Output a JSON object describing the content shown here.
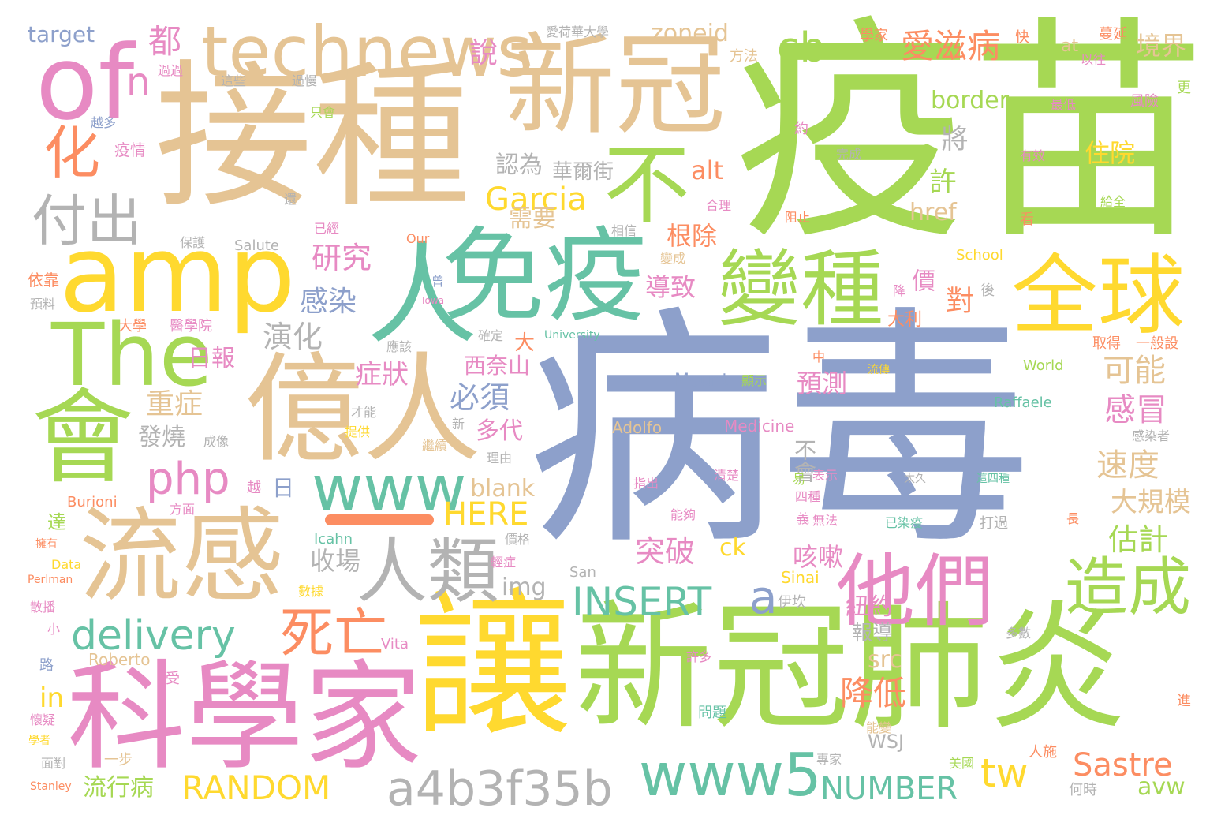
{
  "palette": {
    "green": "#a6d854",
    "tan": "#e5c494",
    "pink": "#e78ac3",
    "blue": "#8da0cb",
    "teal": "#66c2a5",
    "orange": "#fc8d62",
    "yellow": "#ffd92f",
    "gray": "#b3b3b3"
  },
  "words": [
    {
      "text": "病毒"
    },
    {
      "text": "疫苗"
    },
    {
      "text": "接種"
    },
    {
      "text": "新冠"
    },
    {
      "text": "億人"
    },
    {
      "text": "讓"
    },
    {
      "text": "新冠肺炎"
    },
    {
      "text": "科學家"
    },
    {
      "text": "免疫"
    },
    {
      "text": "人"
    },
    {
      "text": "流感"
    },
    {
      "text": "不"
    },
    {
      "text": "amp"
    },
    {
      "text": "會"
    },
    {
      "text": "The"
    },
    {
      "text": "of"
    },
    {
      "text": "technews"
    },
    {
      "text": "變種"
    },
    {
      "text": "全球"
    },
    {
      "text": "他們"
    },
    {
      "text": "人類"
    },
    {
      "text": "造成"
    },
    {
      "text": "www"
    },
    {
      "text": "www5"
    },
    {
      "text": "a4b3f35b"
    },
    {
      "text": "死亡"
    },
    {
      "text": "delivery"
    },
    {
      "text": "php"
    },
    {
      "text": "化"
    },
    {
      "text": "付出"
    },
    {
      "text": "cb"
    },
    {
      "text": "INSERT"
    },
    {
      "text": "tw"
    },
    {
      "text": "a"
    },
    {
      "text": "愛滋病"
    },
    {
      "text": "Garcia"
    },
    {
      "text": "RANDOM"
    },
    {
      "text": "NUMBER"
    },
    {
      "text": "Sastre"
    },
    {
      "text": "HERE"
    },
    {
      "text": "n"
    },
    {
      "text": "都"
    },
    {
      "text": "說"
    },
    {
      "text": "zoneid"
    },
    {
      "text": "境界"
    },
    {
      "text": "border"
    },
    {
      "text": "將"
    },
    {
      "text": "住院"
    },
    {
      "text": "認為"
    },
    {
      "text": "華爾街"
    },
    {
      "text": "許"
    },
    {
      "text": "alt"
    },
    {
      "text": "需要"
    },
    {
      "text": "根除"
    },
    {
      "text": "href"
    },
    {
      "text": "研究"
    },
    {
      "text": "感染"
    },
    {
      "text": "演化"
    },
    {
      "text": "導致"
    },
    {
      "text": "價"
    },
    {
      "text": "對"
    },
    {
      "text": "大利"
    },
    {
      "text": "可能"
    },
    {
      "text": "日報"
    },
    {
      "text": "症狀"
    },
    {
      "text": "西奈山"
    },
    {
      "text": "預測"
    },
    {
      "text": "感冒"
    },
    {
      "text": "重症"
    },
    {
      "text": "必須"
    },
    {
      "text": "多代"
    },
    {
      "text": "發燒"
    },
    {
      "text": "速度"
    },
    {
      "text": "不會"
    },
    {
      "text": "大規模"
    },
    {
      "text": "估計"
    },
    {
      "text": "咳嗽"
    },
    {
      "text": "突破"
    },
    {
      "text": "收場"
    },
    {
      "text": "img"
    },
    {
      "text": "blank"
    },
    {
      "text": "ck"
    },
    {
      "text": "紐約"
    },
    {
      "text": "報導"
    },
    {
      "text": "src"
    },
    {
      "text": "降低"
    },
    {
      "text": "WSJ"
    },
    {
      "text": "in"
    },
    {
      "text": "流行病"
    },
    {
      "text": "avw"
    },
    {
      "text": "target"
    },
    {
      "text": "愛荷華大學"
    },
    {
      "text": "學家"
    },
    {
      "text": "快"
    },
    {
      "text": "at"
    },
    {
      "text": "蔓延"
    },
    {
      "text": "方法"
    },
    {
      "text": "以往"
    },
    {
      "text": "這些"
    },
    {
      "text": "過慢"
    },
    {
      "text": "過過"
    },
    {
      "text": "越多"
    },
    {
      "text": "疫情"
    },
    {
      "text": "只會"
    },
    {
      "text": "最低"
    },
    {
      "text": "風險"
    },
    {
      "text": "更"
    },
    {
      "text": "約"
    },
    {
      "text": "完成"
    },
    {
      "text": "有效"
    },
    {
      "text": "還"
    },
    {
      "text": "合理"
    },
    {
      "text": "給全"
    },
    {
      "text": "已經"
    },
    {
      "text": "阻止"
    },
    {
      "text": "看"
    },
    {
      "text": "保護"
    },
    {
      "text": "相信"
    },
    {
      "text": "Salute"
    },
    {
      "text": "Our"
    },
    {
      "text": "School"
    },
    {
      "text": "變成"
    },
    {
      "text": "依靠"
    },
    {
      "text": "預料"
    },
    {
      "text": "曾"
    },
    {
      "text": "降"
    },
    {
      "text": "後"
    },
    {
      "text": "Iowa"
    },
    {
      "text": "大學"
    },
    {
      "text": "醫學院"
    },
    {
      "text": "確定"
    },
    {
      "text": "University"
    },
    {
      "text": "大"
    },
    {
      "text": "應該"
    },
    {
      "text": "取得"
    },
    {
      "text": "一般設"
    },
    {
      "text": "中"
    },
    {
      "text": "World"
    },
    {
      "text": "流傳"
    },
    {
      "text": "Mount"
    },
    {
      "text": "顯示"
    },
    {
      "text": "Raffaele"
    },
    {
      "text": "才能"
    },
    {
      "text": "提供"
    },
    {
      "text": "新"
    },
    {
      "text": "Adolfo"
    },
    {
      "text": "Medicine"
    },
    {
      "text": "感染者"
    },
    {
      "text": "成像"
    },
    {
      "text": "繼續"
    },
    {
      "text": "理由"
    },
    {
      "text": "越"
    },
    {
      "text": "日"
    },
    {
      "text": "指出"
    },
    {
      "text": "清楚"
    },
    {
      "text": "易"
    },
    {
      "text": "表示"
    },
    {
      "text": "太久"
    },
    {
      "text": "這四種"
    },
    {
      "text": "Burioni"
    },
    {
      "text": "方面"
    },
    {
      "text": "達"
    },
    {
      "text": "能夠"
    },
    {
      "text": "四種"
    },
    {
      "text": "已染疫"
    },
    {
      "text": "打過"
    },
    {
      "text": "長"
    },
    {
      "text": "擁有"
    },
    {
      "text": "Icahn"
    },
    {
      "text": "義"
    },
    {
      "text": "無法"
    },
    {
      "text": "價格"
    },
    {
      "text": "Data"
    },
    {
      "text": "輕症"
    },
    {
      "text": "Perlman"
    },
    {
      "text": "San"
    },
    {
      "text": "Sinai"
    },
    {
      "text": "數據"
    },
    {
      "text": "散播"
    },
    {
      "text": "伊坎"
    },
    {
      "text": "小"
    },
    {
      "text": "Vita"
    },
    {
      "text": "多數"
    },
    {
      "text": "Roberto"
    },
    {
      "text": "許多"
    },
    {
      "text": "路"
    },
    {
      "text": "受"
    },
    {
      "text": "懷疑"
    },
    {
      "text": "問題"
    },
    {
      "text": "進"
    },
    {
      "text": "學者"
    },
    {
      "text": "能變"
    },
    {
      "text": "面對"
    },
    {
      "text": "一步"
    },
    {
      "text": "專家"
    },
    {
      "text": "人施"
    },
    {
      "text": "美國"
    },
    {
      "text": "Stanley"
    },
    {
      "text": "何時"
    }
  ]
}
